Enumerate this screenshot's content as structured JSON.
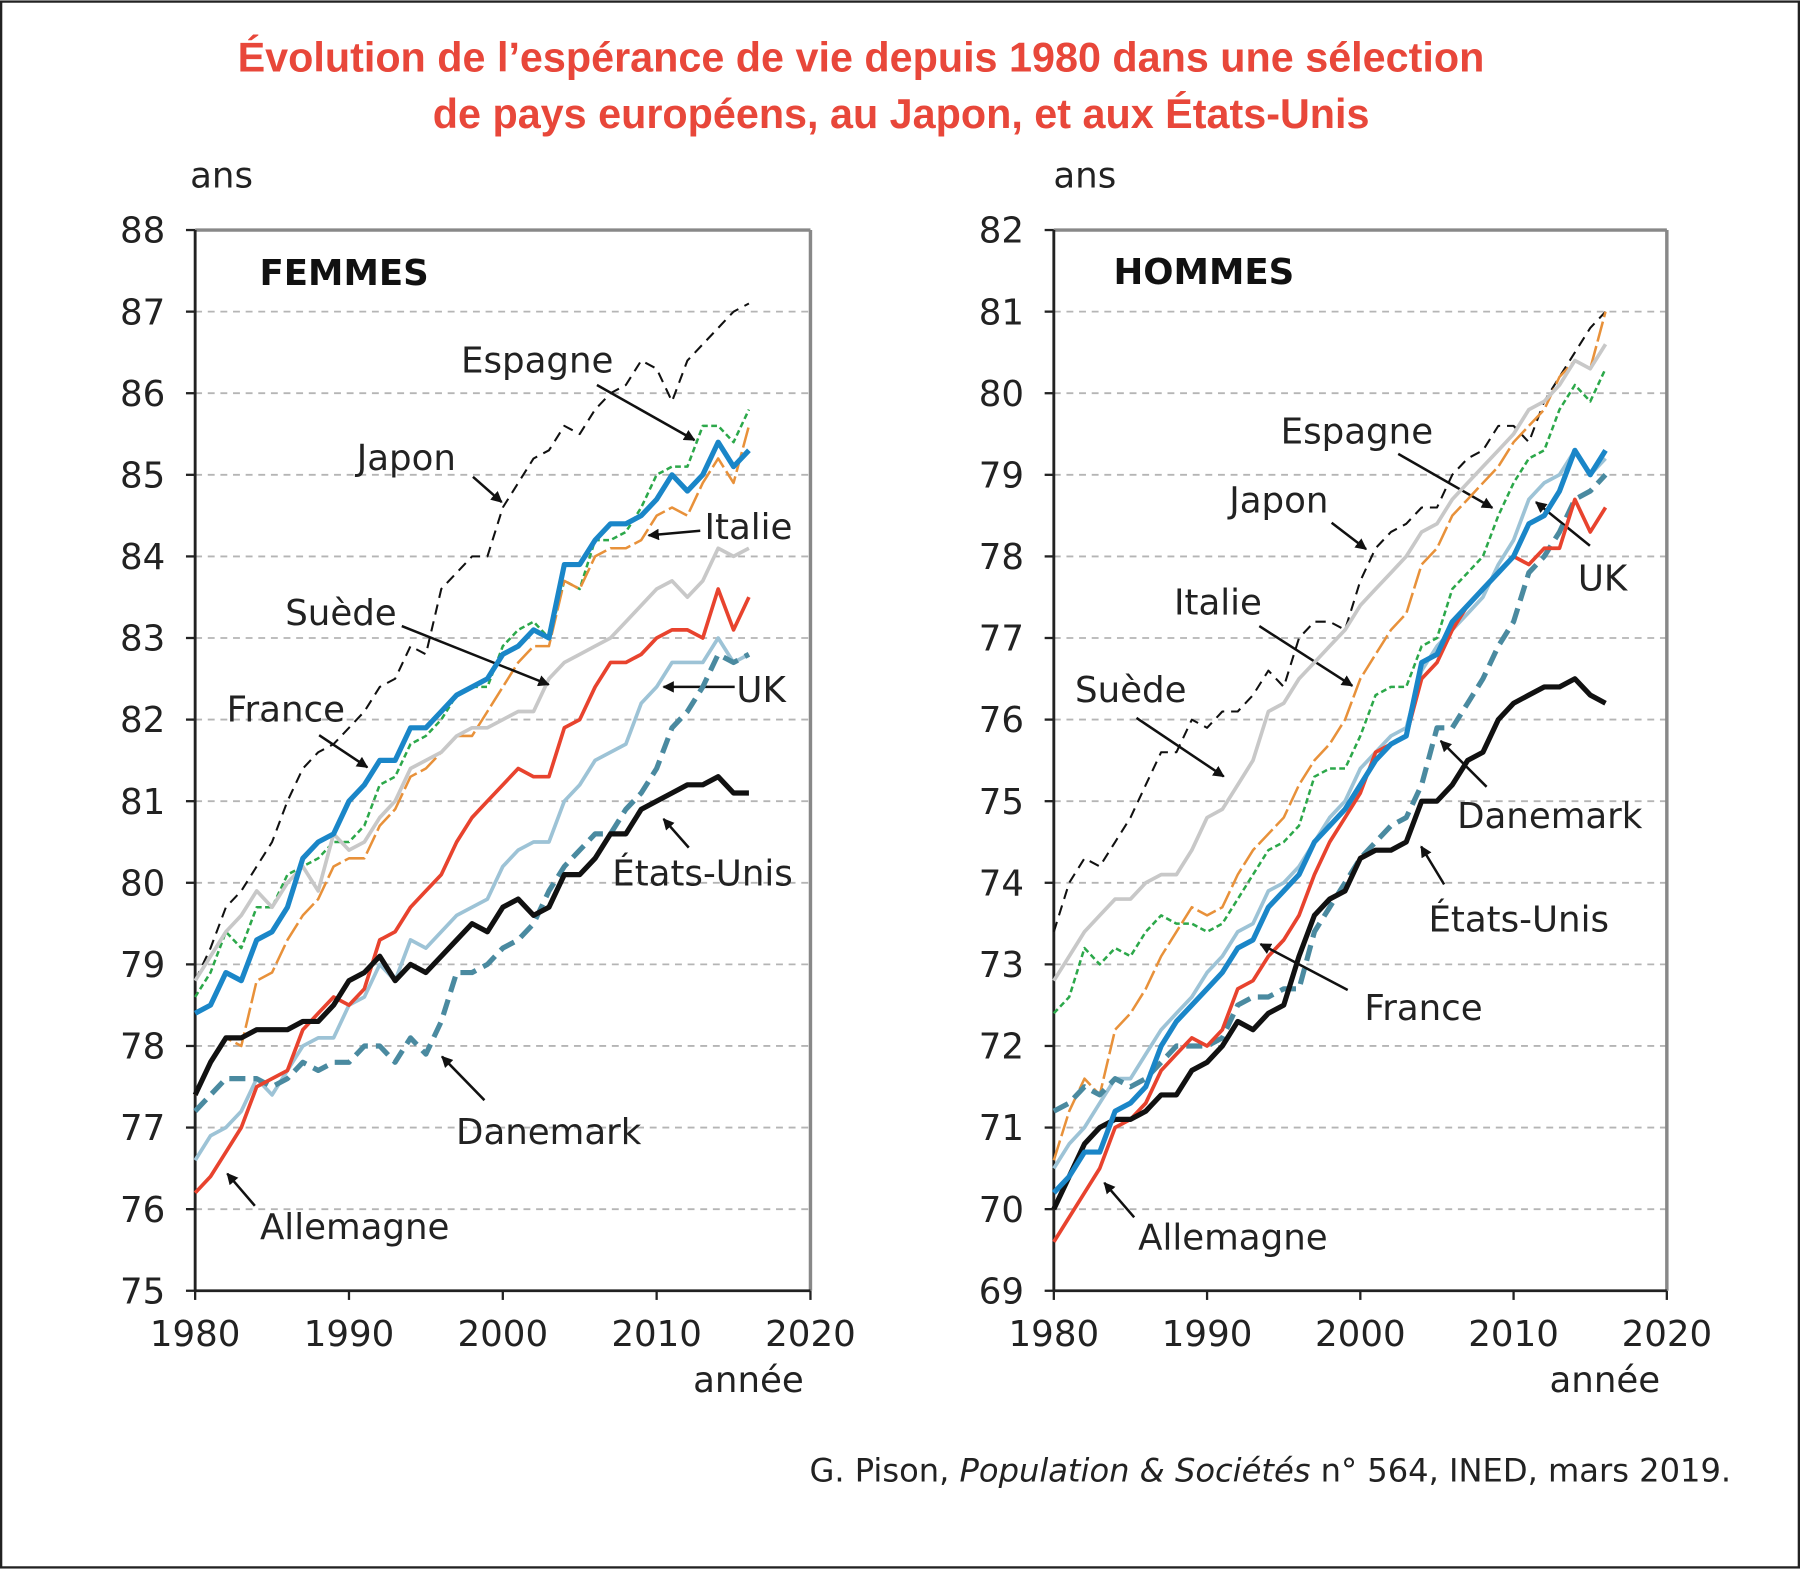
{
  "title_line1": "Évolution de l’espérance de vie depuis 1980 dans une sélection",
  "title_line2": "de pays européens, au Japon, et aux États-Unis",
  "source": {
    "author": "G. Pison, ",
    "journal": "Population & Sociétés",
    "rest": " n° 564, INED, mars 2019."
  },
  "colors": {
    "title": "#e8473a"
  },
  "chart_data": [
    {
      "type": "line",
      "title": "FEMMES",
      "ylabel": "ans",
      "xlabel": "année",
      "xlim": [
        1980,
        2020
      ],
      "ylim": [
        75,
        88
      ],
      "xticks": [
        "1980",
        "1990",
        "2000",
        "2010",
        "2020"
      ],
      "yticks": [
        "75",
        "76",
        "77",
        "78",
        "79",
        "80",
        "81",
        "82",
        "83",
        "84",
        "85",
        "86",
        "87",
        "88"
      ],
      "grid": "horizontal dashed",
      "x_start": 1980,
      "series": [
        {
          "name": "Japon",
          "color": "#111111",
          "style": "dashed-thin",
          "values": [
            78.8,
            79.2,
            79.7,
            79.9,
            80.2,
            80.5,
            81.0,
            81.4,
            81.6,
            81.7,
            81.9,
            82.1,
            82.4,
            82.5,
            82.9,
            82.8,
            83.6,
            83.8,
            84.0,
            84.0,
            84.6,
            84.9,
            85.2,
            85.3,
            85.6,
            85.5,
            85.8,
            86.0,
            86.1,
            86.4,
            86.3,
            85.9,
            86.4,
            86.6,
            86.8,
            87.0,
            87.1
          ]
        },
        {
          "name": "Espagne",
          "color": "#2ca84a",
          "style": "dotted",
          "values": [
            78.6,
            78.9,
            79.4,
            79.2,
            79.7,
            79.7,
            80.1,
            80.2,
            80.3,
            80.5,
            80.5,
            80.7,
            81.2,
            81.3,
            81.7,
            81.8,
            82.0,
            82.3,
            82.4,
            82.4,
            82.9,
            83.1,
            83.2,
            83.0,
            83.7,
            83.6,
            84.2,
            84.2,
            84.3,
            84.6,
            85.0,
            85.1,
            85.1,
            85.6,
            85.6,
            85.4,
            85.8
          ]
        },
        {
          "name": "Italie",
          "color": "#e8913a",
          "style": "dashed",
          "values": [
            77.4,
            77.8,
            78.1,
            78.0,
            78.8,
            78.9,
            79.3,
            79.6,
            79.8,
            80.2,
            80.3,
            80.3,
            80.7,
            80.9,
            81.3,
            81.4,
            81.6,
            81.8,
            81.8,
            82.1,
            82.4,
            82.7,
            82.9,
            82.9,
            83.7,
            83.6,
            84.0,
            84.1,
            84.1,
            84.2,
            84.5,
            84.6,
            84.5,
            84.9,
            85.2,
            84.9,
            85.6
          ]
        },
        {
          "name": "Suède",
          "color": "#c8c8c8",
          "style": "solid",
          "values": [
            78.8,
            79.1,
            79.4,
            79.6,
            79.9,
            79.7,
            80.0,
            80.2,
            79.9,
            80.6,
            80.4,
            80.5,
            80.8,
            81.0,
            81.4,
            81.5,
            81.6,
            81.8,
            81.9,
            81.9,
            82.0,
            82.1,
            82.1,
            82.5,
            82.7,
            82.8,
            82.9,
            83.0,
            83.2,
            83.4,
            83.6,
            83.7,
            83.5,
            83.7,
            84.1,
            84.0,
            84.1
          ]
        },
        {
          "name": "UK",
          "color": "#9dc3d6",
          "style": "solid",
          "values": [
            76.6,
            76.9,
            77.0,
            77.2,
            77.6,
            77.4,
            77.7,
            78.0,
            78.1,
            78.1,
            78.5,
            78.6,
            79.0,
            78.8,
            79.3,
            79.2,
            79.4,
            79.6,
            79.7,
            79.8,
            80.2,
            80.4,
            80.5,
            80.5,
            81.0,
            81.2,
            81.5,
            81.6,
            81.7,
            82.2,
            82.4,
            82.7,
            82.7,
            82.7,
            83.0,
            82.7,
            82.8
          ]
        },
        {
          "name": "Danemark",
          "color": "#4a8aa0",
          "style": "dashed-thick",
          "values": [
            77.2,
            77.4,
            77.6,
            77.6,
            77.6,
            77.5,
            77.6,
            77.8,
            77.7,
            77.8,
            77.8,
            78.0,
            78.0,
            77.8,
            78.1,
            77.9,
            78.3,
            78.9,
            78.9,
            79.0,
            79.2,
            79.3,
            79.5,
            79.9,
            80.2,
            80.4,
            80.6,
            80.6,
            80.9,
            81.1,
            81.4,
            81.9,
            82.1,
            82.4,
            82.8,
            82.7,
            82.8
          ]
        },
        {
          "name": "Allemagne",
          "color": "#e8432e",
          "style": "solid",
          "values": [
            76.2,
            76.4,
            76.7,
            77.0,
            77.5,
            77.6,
            77.7,
            78.2,
            78.4,
            78.6,
            78.5,
            78.7,
            79.3,
            79.4,
            79.7,
            79.9,
            80.1,
            80.5,
            80.8,
            81.0,
            81.2,
            81.4,
            81.3,
            81.3,
            81.9,
            82.0,
            82.4,
            82.7,
            82.7,
            82.8,
            83.0,
            83.1,
            83.1,
            83.0,
            83.6,
            83.1,
            83.5
          ]
        },
        {
          "name": "États-Unis",
          "color": "#111111",
          "style": "thick",
          "values": [
            77.4,
            77.8,
            78.1,
            78.1,
            78.2,
            78.2,
            78.2,
            78.3,
            78.3,
            78.5,
            78.8,
            78.9,
            79.1,
            78.8,
            79.0,
            78.9,
            79.1,
            79.3,
            79.5,
            79.4,
            79.7,
            79.8,
            79.6,
            79.7,
            80.1,
            80.1,
            80.3,
            80.6,
            80.6,
            80.9,
            81.0,
            81.1,
            81.2,
            81.2,
            81.3,
            81.1,
            81.1
          ]
        },
        {
          "name": "France",
          "color": "#1a86c8",
          "style": "thick",
          "values": [
            78.4,
            78.5,
            78.9,
            78.8,
            79.3,
            79.4,
            79.7,
            80.3,
            80.5,
            80.6,
            81.0,
            81.2,
            81.5,
            81.5,
            81.9,
            81.9,
            82.1,
            82.3,
            82.4,
            82.5,
            82.8,
            82.9,
            83.1,
            83.0,
            83.9,
            83.9,
            84.2,
            84.4,
            84.4,
            84.5,
            84.7,
            85.0,
            84.8,
            85.0,
            85.4,
            85.1,
            85.3
          ]
        }
      ]
    },
    {
      "type": "line",
      "title": "HOMMES",
      "ylabel": "ans",
      "xlabel": "année",
      "xlim": [
        1980,
        2020
      ],
      "ylim": [
        69,
        82
      ],
      "xticks": [
        "1980",
        "1990",
        "2000",
        "2010",
        "2020"
      ],
      "yticks": [
        "69",
        "70",
        "71",
        "72",
        "73",
        "74",
        "75",
        "76",
        "77",
        "78",
        "79",
        "80",
        "81",
        "82"
      ],
      "grid": "horizontal dashed",
      "x_start": 1980,
      "series": [
        {
          "name": "Japon",
          "color": "#111111",
          "style": "dashed-thin",
          "values": [
            73.4,
            74.0,
            74.3,
            74.2,
            74.5,
            74.8,
            75.2,
            75.6,
            75.6,
            76.0,
            75.9,
            76.1,
            76.1,
            76.3,
            76.6,
            76.4,
            77.0,
            77.2,
            77.2,
            77.1,
            77.7,
            78.1,
            78.3,
            78.4,
            78.6,
            78.6,
            79.0,
            79.2,
            79.3,
            79.6,
            79.6,
            79.4,
            79.9,
            80.2,
            80.5,
            80.8,
            81.0
          ]
        },
        {
          "name": "Espagne",
          "color": "#2ca84a",
          "style": "dotted",
          "values": [
            72.4,
            72.6,
            73.2,
            73.0,
            73.2,
            73.1,
            73.4,
            73.6,
            73.5,
            73.5,
            73.4,
            73.5,
            73.8,
            74.1,
            74.4,
            74.5,
            74.7,
            75.3,
            75.4,
            75.4,
            75.8,
            76.3,
            76.4,
            76.4,
            76.9,
            77.0,
            77.6,
            77.8,
            78.0,
            78.5,
            78.9,
            79.2,
            79.3,
            79.8,
            80.1,
            79.9,
            80.3
          ]
        },
        {
          "name": "Italie",
          "color": "#e8913a",
          "style": "dashed",
          "values": [
            70.6,
            71.2,
            71.6,
            71.4,
            72.2,
            72.4,
            72.7,
            73.1,
            73.4,
            73.7,
            73.6,
            73.7,
            74.1,
            74.4,
            74.6,
            74.8,
            75.2,
            75.5,
            75.7,
            76.0,
            76.5,
            76.8,
            77.1,
            77.3,
            77.9,
            78.1,
            78.5,
            78.7,
            78.9,
            79.1,
            79.4,
            79.6,
            79.8,
            80.2,
            80.4,
            80.3,
            81.0
          ]
        },
        {
          "name": "Suède",
          "color": "#c8c8c8",
          "style": "solid",
          "values": [
            72.8,
            73.1,
            73.4,
            73.6,
            73.8,
            73.8,
            74.0,
            74.1,
            74.1,
            74.4,
            74.8,
            74.9,
            75.2,
            75.5,
            76.1,
            76.2,
            76.5,
            76.7,
            76.9,
            77.1,
            77.4,
            77.6,
            77.8,
            78.0,
            78.3,
            78.4,
            78.7,
            78.9,
            79.1,
            79.3,
            79.5,
            79.8,
            79.9,
            80.1,
            80.4,
            80.3,
            80.6
          ]
        },
        {
          "name": "UK",
          "color": "#9dc3d6",
          "style": "solid",
          "values": [
            70.5,
            70.8,
            71.0,
            71.3,
            71.6,
            71.6,
            71.9,
            72.2,
            72.4,
            72.6,
            72.9,
            73.1,
            73.4,
            73.5,
            73.9,
            74.0,
            74.2,
            74.5,
            74.8,
            75.0,
            75.4,
            75.6,
            75.8,
            75.9,
            76.6,
            76.9,
            77.1,
            77.3,
            77.5,
            77.9,
            78.2,
            78.7,
            78.9,
            79.0,
            79.3,
            79.0,
            79.2
          ]
        },
        {
          "name": "Danemark",
          "color": "#4a8aa0",
          "style": "dashed-thick",
          "values": [
            71.2,
            71.3,
            71.5,
            71.4,
            71.6,
            71.5,
            71.6,
            71.8,
            72.0,
            72.0,
            72.0,
            72.1,
            72.5,
            72.6,
            72.6,
            72.7,
            72.7,
            73.4,
            73.7,
            74.0,
            74.3,
            74.5,
            74.7,
            74.8,
            75.2,
            75.9,
            75.9,
            76.2,
            76.5,
            76.9,
            77.2,
            77.8,
            78.0,
            78.3,
            78.7,
            78.8,
            79.0
          ]
        },
        {
          "name": "Allemagne",
          "color": "#e8432e",
          "style": "solid",
          "values": [
            69.6,
            69.9,
            70.2,
            70.5,
            71.0,
            71.1,
            71.3,
            71.7,
            71.9,
            72.1,
            72.0,
            72.2,
            72.7,
            72.8,
            73.1,
            73.3,
            73.6,
            74.1,
            74.5,
            74.8,
            75.1,
            75.6,
            75.7,
            75.8,
            76.5,
            76.7,
            77.1,
            77.4,
            77.6,
            77.8,
            78.0,
            77.9,
            78.1,
            78.1,
            78.7,
            78.3,
            78.6
          ]
        },
        {
          "name": "États-Unis",
          "color": "#111111",
          "style": "thick",
          "values": [
            70.0,
            70.4,
            70.8,
            71.0,
            71.1,
            71.1,
            71.2,
            71.4,
            71.4,
            71.7,
            71.8,
            72.0,
            72.3,
            72.2,
            72.4,
            72.5,
            73.1,
            73.6,
            73.8,
            73.9,
            74.3,
            74.4,
            74.4,
            74.5,
            75.0,
            75.0,
            75.2,
            75.5,
            75.6,
            76.0,
            76.2,
            76.3,
            76.4,
            76.4,
            76.5,
            76.3,
            76.2
          ]
        },
        {
          "name": "France",
          "color": "#1a86c8",
          "style": "thick",
          "values": [
            70.2,
            70.4,
            70.7,
            70.7,
            71.2,
            71.3,
            71.5,
            72.0,
            72.3,
            72.5,
            72.7,
            72.9,
            73.2,
            73.3,
            73.7,
            73.9,
            74.1,
            74.5,
            74.7,
            74.9,
            75.2,
            75.5,
            75.7,
            75.8,
            76.7,
            76.8,
            77.2,
            77.4,
            77.6,
            77.8,
            78.0,
            78.4,
            78.5,
            78.8,
            79.3,
            79.0,
            79.3
          ]
        }
      ]
    }
  ]
}
